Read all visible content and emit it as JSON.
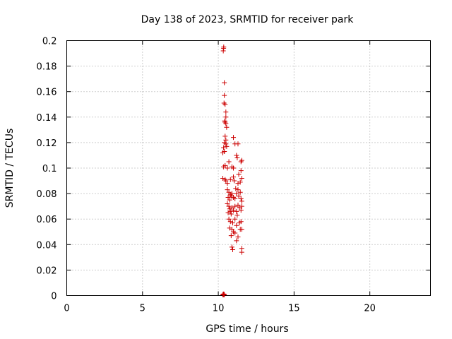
{
  "chart_data": {
    "type": "scatter",
    "title": "Day 138 of 2023, SRMTID for receiver park",
    "xlabel": "GPS time / hours",
    "ylabel": "SRMTID / TECUs",
    "xlim": [
      0,
      24
    ],
    "ylim": [
      0,
      0.2
    ],
    "xticks": [
      0,
      5,
      10,
      15,
      20
    ],
    "xtick_labels": [
      "0",
      "5",
      "10",
      "15",
      "20"
    ],
    "yticks": [
      0,
      0.02,
      0.04,
      0.06,
      0.08,
      0.1,
      0.12,
      0.14,
      0.16,
      0.18,
      0.2
    ],
    "ytick_labels": [
      "0",
      "0.02",
      "0.04",
      "0.06",
      "0.08",
      "0.1",
      "0.12",
      "0.14",
      "0.16",
      "0.18",
      "0.2"
    ],
    "grid": true,
    "marker": "plus",
    "color": "#cc0000",
    "series": [
      {
        "name": "SRMTID",
        "points": [
          [
            10.35,
            0.194
          ],
          [
            10.33,
            0.192
          ],
          [
            10.36,
            0.195
          ],
          [
            10.4,
            0.167
          ],
          [
            10.4,
            0.157
          ],
          [
            10.45,
            0.15
          ],
          [
            10.38,
            0.151
          ],
          [
            10.5,
            0.144
          ],
          [
            10.5,
            0.14
          ],
          [
            10.45,
            0.136
          ],
          [
            10.5,
            0.135
          ],
          [
            10.55,
            0.132
          ],
          [
            10.42,
            0.137
          ],
          [
            10.45,
            0.125
          ],
          [
            10.4,
            0.12
          ],
          [
            10.5,
            0.119
          ],
          [
            10.35,
            0.116
          ],
          [
            10.55,
            0.117
          ],
          [
            10.4,
            0.113
          ],
          [
            10.3,
            0.112
          ],
          [
            10.5,
            0.122
          ],
          [
            11.0,
            0.124
          ],
          [
            11.1,
            0.119
          ],
          [
            11.3,
            0.119
          ],
          [
            10.35,
            0.101
          ],
          [
            10.45,
            0.102
          ],
          [
            10.6,
            0.1
          ],
          [
            10.7,
            0.105
          ],
          [
            10.9,
            0.101
          ],
          [
            11.0,
            0.1
          ],
          [
            11.2,
            0.11
          ],
          [
            11.25,
            0.108
          ],
          [
            11.5,
            0.105
          ],
          [
            11.55,
            0.106
          ],
          [
            11.5,
            0.098
          ],
          [
            11.35,
            0.095
          ],
          [
            10.3,
            0.092
          ],
          [
            10.45,
            0.091
          ],
          [
            10.5,
            0.09
          ],
          [
            10.6,
            0.088
          ],
          [
            10.8,
            0.091
          ],
          [
            11.0,
            0.093
          ],
          [
            11.05,
            0.09
          ],
          [
            11.3,
            0.088
          ],
          [
            11.45,
            0.089
          ],
          [
            11.55,
            0.092
          ],
          [
            10.6,
            0.083
          ],
          [
            10.7,
            0.081
          ],
          [
            10.8,
            0.079
          ],
          [
            10.85,
            0.078
          ],
          [
            10.9,
            0.08
          ],
          [
            11.0,
            0.077
          ],
          [
            11.1,
            0.076
          ],
          [
            11.2,
            0.08
          ],
          [
            11.3,
            0.083
          ],
          [
            11.35,
            0.078
          ],
          [
            11.45,
            0.081
          ],
          [
            11.5,
            0.076
          ],
          [
            11.55,
            0.074
          ],
          [
            10.65,
            0.077
          ],
          [
            10.75,
            0.075
          ],
          [
            11.15,
            0.084
          ],
          [
            10.6,
            0.072
          ],
          [
            10.7,
            0.07
          ],
          [
            10.75,
            0.068
          ],
          [
            10.8,
            0.066
          ],
          [
            10.9,
            0.069
          ],
          [
            11.0,
            0.067
          ],
          [
            11.1,
            0.07
          ],
          [
            11.2,
            0.066
          ],
          [
            11.3,
            0.071
          ],
          [
            11.4,
            0.069
          ],
          [
            11.5,
            0.067
          ],
          [
            11.55,
            0.07
          ],
          [
            10.65,
            0.065
          ],
          [
            10.85,
            0.064
          ],
          [
            11.25,
            0.063
          ],
          [
            10.7,
            0.06
          ],
          [
            10.8,
            0.058
          ],
          [
            10.95,
            0.057
          ],
          [
            11.1,
            0.06
          ],
          [
            11.2,
            0.055
          ],
          [
            11.4,
            0.057
          ],
          [
            11.5,
            0.058
          ],
          [
            11.55,
            0.052
          ],
          [
            10.75,
            0.053
          ],
          [
            10.9,
            0.052
          ],
          [
            11.0,
            0.05
          ],
          [
            11.1,
            0.049
          ],
          [
            11.3,
            0.046
          ],
          [
            11.45,
            0.052
          ],
          [
            10.85,
            0.047
          ],
          [
            10.9,
            0.038
          ],
          [
            10.95,
            0.036
          ],
          [
            11.2,
            0.043
          ],
          [
            11.55,
            0.037
          ],
          [
            11.55,
            0.034
          ],
          [
            10.3,
            0.0006
          ],
          [
            10.35,
            0.0006
          ],
          [
            10.4,
            0.0006
          ],
          [
            10.33,
            0.0012
          ],
          [
            10.37,
            0.0012
          ]
        ]
      }
    ]
  }
}
